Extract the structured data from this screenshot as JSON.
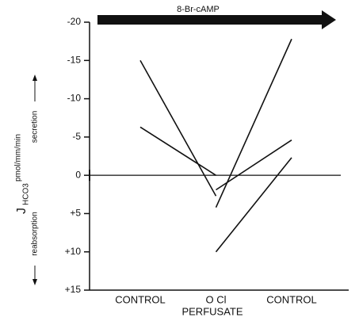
{
  "chart_data": {
    "type": "line",
    "annotation": "8-Br-cAMP",
    "x_label": "PERFUSATE",
    "y_label": {
      "symbol": "J",
      "subscript": "HCO3",
      "unit": "pmol/mm/min"
    },
    "y_annotations": {
      "up": "secretion",
      "down": "reabsorption"
    },
    "categories": [
      "CONTROL",
      "O Cl",
      "CONTROL"
    ],
    "series": [
      {
        "color": "#111111",
        "values": [
          -15,
          2.7,
          null
        ]
      },
      {
        "color": "#111111",
        "values": [
          -6.3,
          0,
          null
        ]
      },
      {
        "color": "#111111",
        "values": [
          null,
          4.2,
          -17.8
        ]
      },
      {
        "color": "#111111",
        "values": [
          null,
          1.9,
          -4.6
        ]
      },
      {
        "color": "#111111",
        "values": [
          null,
          10,
          -2.3
        ]
      }
    ],
    "ylim": [
      -20,
      15
    ],
    "yticks": [
      -20,
      -15,
      -10,
      -5,
      0,
      {
        "value": 5,
        "label": "+5"
      },
      {
        "value": 10,
        "label": "+10"
      },
      {
        "value": 15,
        "label": "+15"
      }
    ],
    "zero_line": true
  }
}
